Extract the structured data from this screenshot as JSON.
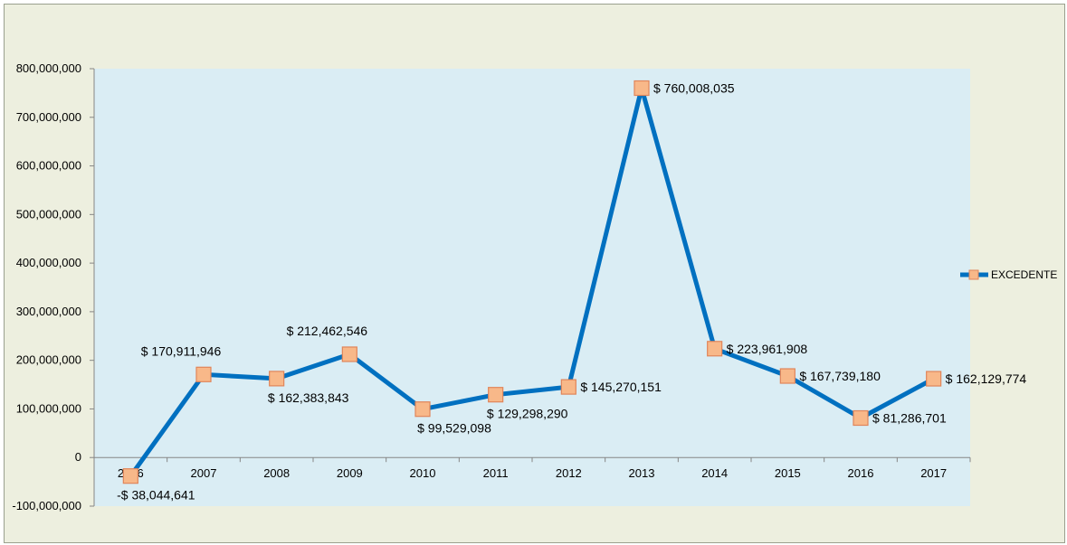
{
  "chart_data": {
    "type": "line",
    "categories": [
      "2006",
      "2007",
      "2008",
      "2009",
      "2010",
      "2011",
      "2012",
      "2013",
      "2014",
      "2015",
      "2016",
      "2017"
    ],
    "series": [
      {
        "name": "EXCEDENTE",
        "values": [
          -38044641,
          170911946,
          162383843,
          212462546,
          99529098,
          129298290,
          145270151,
          760008035,
          223961908,
          167739180,
          81286701,
          162129774
        ],
        "data_labels": [
          "-$ 38,044,641",
          "$ 170,911,946",
          "$ 162,383,843",
          "$ 212,462,546",
          "$ 99,529,098",
          "$ 129,298,290",
          "$ 145,270,151",
          "$ 760,008,035",
          "$ 223,961,908",
          "$ 167,739,180",
          "$ 81,286,701",
          "$ 162,129,774"
        ]
      }
    ],
    "ylim": [
      -100000000,
      800000000
    ],
    "yticks": [
      -100000000,
      0,
      100000000,
      200000000,
      300000000,
      400000000,
      500000000,
      600000000,
      700000000,
      800000000
    ],
    "ytick_labels": [
      "-100,000,000",
      "0",
      "100,000,000",
      "200,000,000",
      "300,000,000",
      "400,000,000",
      "500,000,000",
      "600,000,000",
      "700,000,000",
      "800,000,000"
    ],
    "title": "",
    "xlabel": "",
    "ylabel": "",
    "grid": false,
    "legend_position": "right",
    "colors": {
      "line": "#0070C0",
      "marker_fill": "#F8B889",
      "marker_stroke": "#E0855A",
      "plot_bg": "#DAEDF4",
      "chart_bg": "#EDEFDF"
    }
  }
}
